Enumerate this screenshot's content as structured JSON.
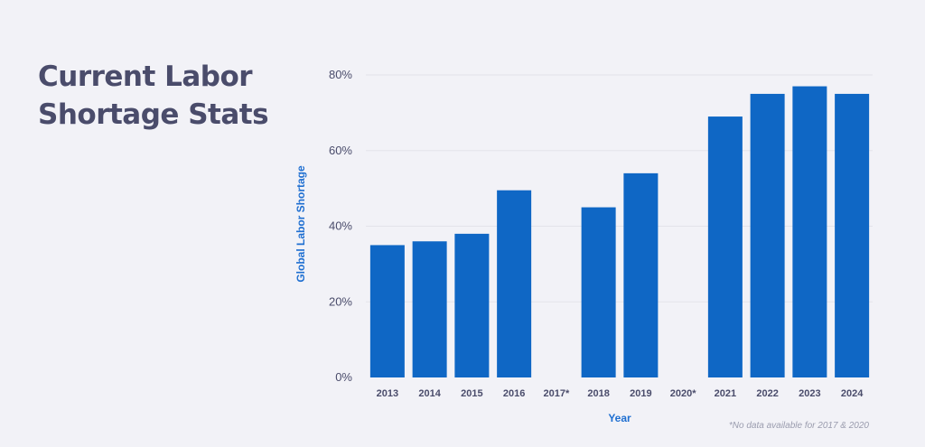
{
  "headline": {
    "line1": "Current Labor",
    "line2": "Shortage Stats"
  },
  "colors": {
    "bar": "#0f67c5",
    "axis_title": "#1f6fd1",
    "text": "#4a4c6b",
    "grid": "#e3e3ea",
    "background": "#f2f2f7"
  },
  "chart_data": {
    "type": "bar",
    "categories": [
      "2013",
      "2014",
      "2015",
      "2016",
      "2017*",
      "2018",
      "2019",
      "2020*",
      "2021",
      "2022",
      "2023",
      "2024"
    ],
    "values": [
      35,
      36,
      38,
      49.5,
      null,
      45,
      54,
      null,
      69,
      75,
      77,
      75
    ],
    "xlabel": "Year",
    "ylabel": "Global Labor Shortage",
    "ylim": [
      0,
      80
    ],
    "yticks": [
      0,
      20,
      40,
      60,
      80
    ],
    "ytick_labels": [
      "0%",
      "20%",
      "40%",
      "60%",
      "80%"
    ],
    "grid": true,
    "footnote": "*No data available for 2017 & 2020"
  }
}
